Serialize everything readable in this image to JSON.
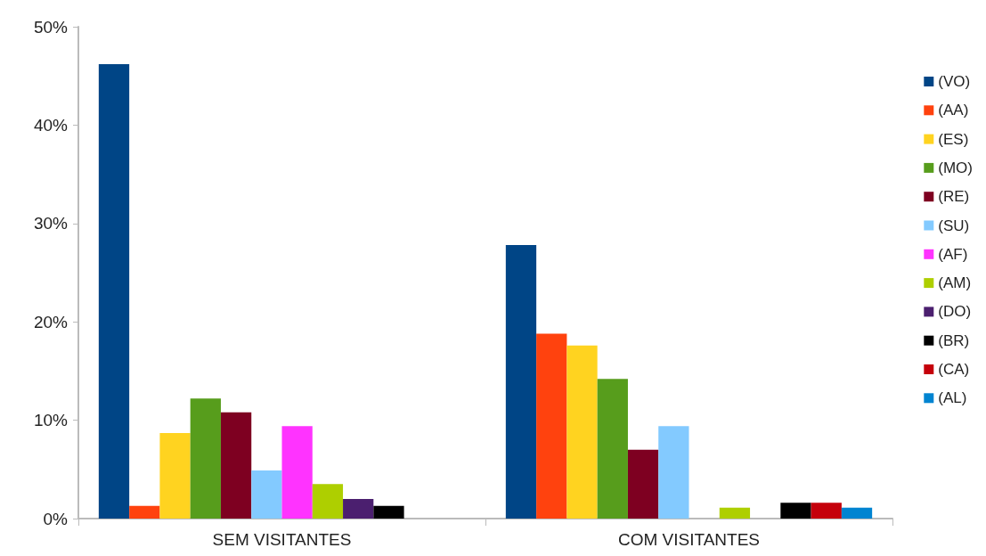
{
  "chart_data": {
    "type": "bar",
    "categories": [
      "SEM VISITANTES",
      "COM VISITANTES"
    ],
    "series": [
      {
        "name": "(VO)",
        "color": "#004586",
        "values": [
          46.2,
          27.8
        ]
      },
      {
        "name": "(AA)",
        "color": "#ff420e",
        "values": [
          1.3,
          18.8
        ]
      },
      {
        "name": "(ES)",
        "color": "#ffd320",
        "values": [
          8.7,
          17.6
        ]
      },
      {
        "name": "(MO)",
        "color": "#579d1c",
        "values": [
          12.2,
          14.2
        ]
      },
      {
        "name": "(RE)",
        "color": "#7e0021",
        "values": [
          10.8,
          7.0
        ]
      },
      {
        "name": "(SU)",
        "color": "#83caff",
        "values": [
          4.9,
          9.4
        ]
      },
      {
        "name": "(AF)",
        "color": "#ff33ff",
        "values": [
          9.4,
          null
        ]
      },
      {
        "name": "(AM)",
        "color": "#aecf00",
        "values": [
          3.5,
          1.1
        ]
      },
      {
        "name": "(DO)",
        "color": "#4b1f6f",
        "values": [
          2.0,
          null
        ]
      },
      {
        "name": "(BR)",
        "color": "#000000",
        "values": [
          1.3,
          1.6
        ]
      },
      {
        "name": "(CA)",
        "color": "#c5000b",
        "values": [
          null,
          1.6
        ]
      },
      {
        "name": "(AL)",
        "color": "#0084d1",
        "values": [
          null,
          1.1
        ]
      }
    ],
    "ylim": [
      0,
      50
    ],
    "yticks": [
      {
        "value": 0,
        "label": "0%"
      },
      {
        "value": 10,
        "label": "10%"
      },
      {
        "value": 20,
        "label": "20%"
      },
      {
        "value": 30,
        "label": "30%"
      },
      {
        "value": 40,
        "label": "40%"
      },
      {
        "value": 50,
        "label": "50%"
      }
    ],
    "grid": false,
    "legend": "right"
  }
}
